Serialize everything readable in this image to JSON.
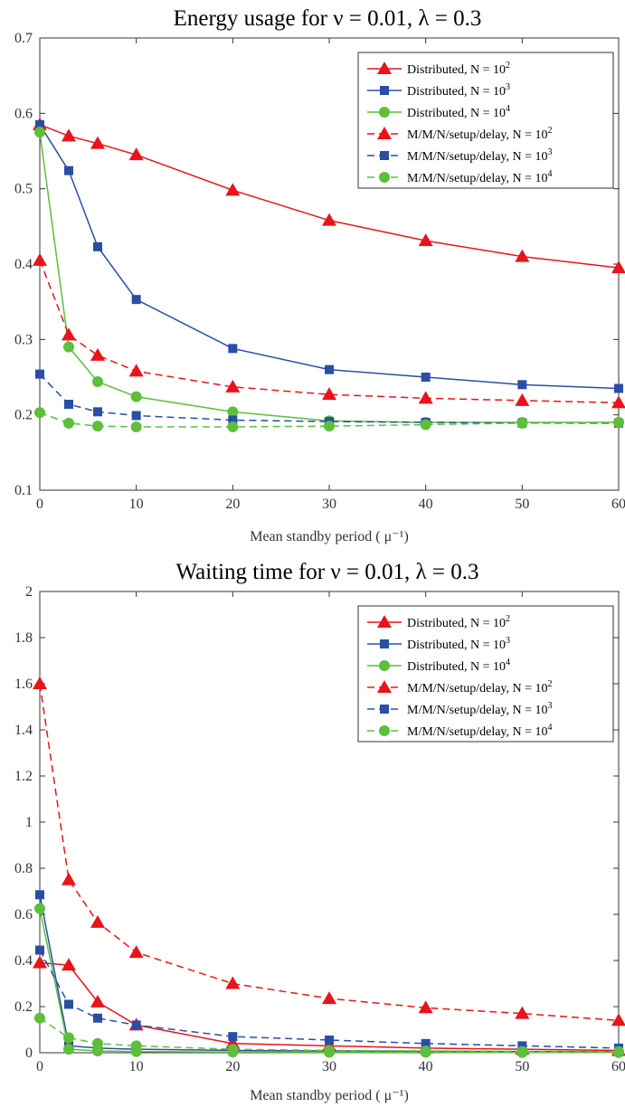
{
  "chart_data": [
    {
      "type": "line",
      "title": "Energy usage for ν = 0.01, λ = 0.3",
      "xlabel": "Mean standby period ( μ⁻¹)",
      "ylabel": "",
      "xlim": [
        0,
        60
      ],
      "ylim": [
        0.1,
        0.7
      ],
      "xticks": [
        "0",
        "10",
        "20",
        "30",
        "40",
        "50",
        "60"
      ],
      "yticks": [
        "0.1",
        "0.2",
        "0.3",
        "0.4",
        "0.5",
        "0.6",
        "0.7"
      ],
      "grid": false,
      "legend_position": "top-right",
      "x": [
        0,
        3,
        6,
        10,
        20,
        30,
        40,
        50,
        60
      ],
      "series": [
        {
          "name": "Distributed, N = 10^2",
          "legend_base": "Distributed, N = 10",
          "legend_exp": "2",
          "color": "#e8141a",
          "marker": "triangle",
          "dash": "solid",
          "values": [
            0.585,
            0.57,
            0.56,
            0.545,
            0.498,
            0.458,
            0.431,
            0.41,
            0.395
          ]
        },
        {
          "name": "Distributed, N = 10^3",
          "legend_base": "Distributed, N = 10",
          "legend_exp": "3",
          "color": "#2a4ea4",
          "marker": "square",
          "dash": "solid",
          "values": [
            0.585,
            0.524,
            0.423,
            0.353,
            0.288,
            0.26,
            0.25,
            0.24,
            0.235
          ]
        },
        {
          "name": "Distributed, N = 10^4",
          "legend_base": "Distributed, N = 10",
          "legend_exp": "4",
          "color": "#5dbf3c",
          "marker": "circle",
          "dash": "solid",
          "values": [
            0.575,
            0.29,
            0.244,
            0.224,
            0.204,
            0.192,
            0.19,
            0.19,
            0.19
          ]
        },
        {
          "name": "M/M/N/setup/delay, N = 10^2",
          "legend_base": "M/M/N/setup/delay, N = 10",
          "legend_exp": "2",
          "color": "#e8141a",
          "marker": "triangle",
          "dash": "dashed",
          "values": [
            0.405,
            0.306,
            0.279,
            0.258,
            0.237,
            0.227,
            0.222,
            0.219,
            0.216
          ]
        },
        {
          "name": "M/M/N/setup/delay, N = 10^3",
          "legend_base": "M/M/N/setup/delay, N = 10",
          "legend_exp": "3",
          "color": "#2a4ea4",
          "marker": "square",
          "dash": "dashed",
          "values": [
            0.254,
            0.214,
            0.204,
            0.199,
            0.193,
            0.191,
            0.19,
            0.189,
            0.189
          ]
        },
        {
          "name": "M/M/N/setup/delay, N = 10^4",
          "legend_base": "M/M/N/setup/delay, N = 10",
          "legend_exp": "4",
          "color": "#5dbf3c",
          "marker": "circle",
          "dash": "dashed",
          "values": [
            0.203,
            0.189,
            0.185,
            0.184,
            0.184,
            0.185,
            0.187,
            0.189,
            0.19
          ]
        }
      ]
    },
    {
      "type": "line",
      "title": "Waiting time for ν = 0.01, λ = 0.3",
      "xlabel": "Mean standby period ( μ⁻¹)",
      "ylabel": "",
      "xlim": [
        0,
        60
      ],
      "ylim": [
        0,
        2
      ],
      "xticks": [
        "0",
        "10",
        "20",
        "30",
        "40",
        "50",
        "60"
      ],
      "yticks": [
        "0",
        "0.2",
        "0.4",
        "0.6",
        "0.8",
        "1",
        "1.2",
        "1.4",
        "1.6",
        "1.8",
        "2"
      ],
      "grid": false,
      "legend_position": "top-right",
      "x": [
        0,
        3,
        6,
        10,
        20,
        30,
        40,
        50,
        60
      ],
      "series": [
        {
          "name": "Distributed, N = 10^2",
          "legend_base": "Distributed, N = 10",
          "legend_exp": "2",
          "color": "#e8141a",
          "marker": "triangle",
          "dash": "solid",
          "values": [
            0.39,
            0.38,
            0.22,
            0.12,
            0.04,
            0.03,
            0.02,
            0.015,
            0.01
          ]
        },
        {
          "name": "Distributed, N = 10^3",
          "legend_base": "Distributed, N = 10",
          "legend_exp": "3",
          "color": "#2a4ea4",
          "marker": "square",
          "dash": "solid",
          "values": [
            0.685,
            0.03,
            0.02,
            0.015,
            0.01,
            0.008,
            0.006,
            0.005,
            0.004
          ]
        },
        {
          "name": "Distributed, N = 10^4",
          "legend_base": "Distributed, N = 10",
          "legend_exp": "4",
          "color": "#5dbf3c",
          "marker": "circle",
          "dash": "solid",
          "values": [
            0.625,
            0.015,
            0.008,
            0.005,
            0.003,
            0.002,
            0.002,
            0.001,
            0.001
          ]
        },
        {
          "name": "M/M/N/setup/delay, N = 10^2",
          "legend_base": "M/M/N/setup/delay, N = 10",
          "legend_exp": "2",
          "color": "#e8141a",
          "marker": "triangle",
          "dash": "dashed",
          "values": [
            1.6,
            0.75,
            0.565,
            0.435,
            0.3,
            0.235,
            0.195,
            0.17,
            0.14
          ]
        },
        {
          "name": "M/M/N/setup/delay, N = 10^3",
          "legend_base": "M/M/N/setup/delay, N = 10",
          "legend_exp": "3",
          "color": "#2a4ea4",
          "marker": "square",
          "dash": "dashed",
          "values": [
            0.445,
            0.21,
            0.15,
            0.12,
            0.07,
            0.055,
            0.04,
            0.03,
            0.02
          ]
        },
        {
          "name": "M/M/N/setup/delay, N = 10^4",
          "legend_base": "M/M/N/setup/delay, N = 10",
          "legend_exp": "4",
          "color": "#5dbf3c",
          "marker": "circle",
          "dash": "dashed",
          "values": [
            0.15,
            0.065,
            0.04,
            0.03,
            0.015,
            0.01,
            0.008,
            0.006,
            0.005
          ]
        }
      ]
    }
  ]
}
